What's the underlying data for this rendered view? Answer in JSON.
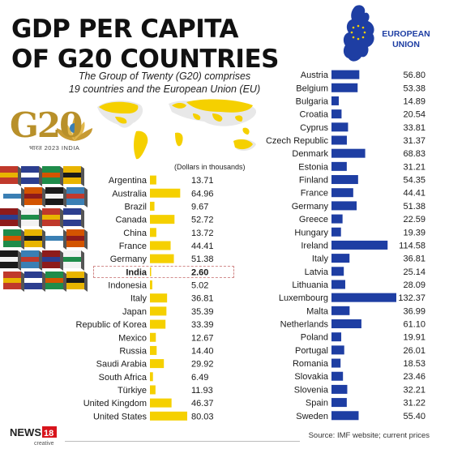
{
  "title_line1": "GDP PER CAPITA",
  "title_line2": "OF G20 COUNTRIES",
  "subtitle_line1": "The Group of Twenty (G20) comprises",
  "subtitle_line2": "19 countries and the European Union (EU)",
  "g20_logo_text": "G20",
  "g20_caption": "भारत 2023 INDIA",
  "eu_label_line1": "EUROPEAN",
  "eu_label_line2": "UNION",
  "source": "Source: IMF website; current prices",
  "logo_text": "NEWS18",
  "logo_subtext": "creative",
  "colors": {
    "g20_bar": "#f5d000",
    "eu_bar": "#1e3ea3",
    "highlight_border": "#d28c8c"
  },
  "chart_data": [
    {
      "type": "bar",
      "orientation": "horizontal",
      "ylabel": "(Dollars in thousands)",
      "highlight": "India",
      "categories": [
        "Argentina",
        "Australia",
        "Brazil",
        "Canada",
        "China",
        "France",
        "Germany",
        "India",
        "Indonesia",
        "Italy",
        "Japan",
        "Republic of Korea",
        "Mexico",
        "Russia",
        "Saudi Arabia",
        "South Africa",
        "Türkiye",
        "United Kingdom",
        "United States"
      ],
      "values": [
        13.71,
        64.96,
        9.67,
        52.72,
        13.72,
        44.41,
        51.38,
        2.6,
        5.02,
        36.81,
        35.39,
        33.39,
        12.67,
        14.4,
        29.92,
        6.49,
        11.93,
        46.37,
        80.03
      ],
      "labels": [
        "13.71",
        "64.96",
        "9.67",
        "52.72",
        "13.72",
        "44.41",
        "51.38",
        "2.60",
        "5.02",
        "36.81",
        "35.39",
        "33.39",
        "12.67",
        "14.40",
        "29.92",
        "6.49",
        "11.93",
        "46.37",
        "80.03"
      ]
    },
    {
      "type": "bar",
      "orientation": "horizontal",
      "title": "",
      "categories": [
        "Austria",
        "Belgium",
        "Bulgaria",
        "Croatia",
        "Cyprus",
        "Czech Republic",
        "Denmark",
        "Estonia",
        "Finland",
        "France",
        "Germany",
        "Greece",
        "Hungary",
        "Ireland",
        "Italy",
        "Latvia",
        "Lithuania",
        "Luxembourg",
        "Malta",
        "Netherlands",
        "Poland",
        "Portugal",
        "Romania",
        "Slovakia",
        "Slovenia",
        "Spain",
        "Sweden"
      ],
      "values": [
        56.8,
        53.38,
        14.89,
        20.54,
        33.81,
        31.37,
        68.83,
        31.21,
        54.35,
        44.41,
        51.38,
        22.59,
        19.39,
        114.58,
        36.81,
        25.14,
        28.09,
        132.37,
        36.99,
        61.1,
        19.91,
        26.01,
        18.53,
        23.46,
        32.21,
        31.22,
        55.4
      ],
      "labels": [
        "56.80",
        "53.38",
        "14.89",
        "20.54",
        "33.81",
        "31.37",
        "68.83",
        "31.21",
        "54.35",
        "44.41",
        "51.38",
        "22.59",
        "19.39",
        "114.58",
        "36.81",
        "25.14",
        "28.09",
        "132.37",
        "36.99",
        "61.10",
        "19.91",
        "26.01",
        "18.53",
        "23.46",
        "32.21",
        "31.22",
        "55.40"
      ]
    }
  ]
}
